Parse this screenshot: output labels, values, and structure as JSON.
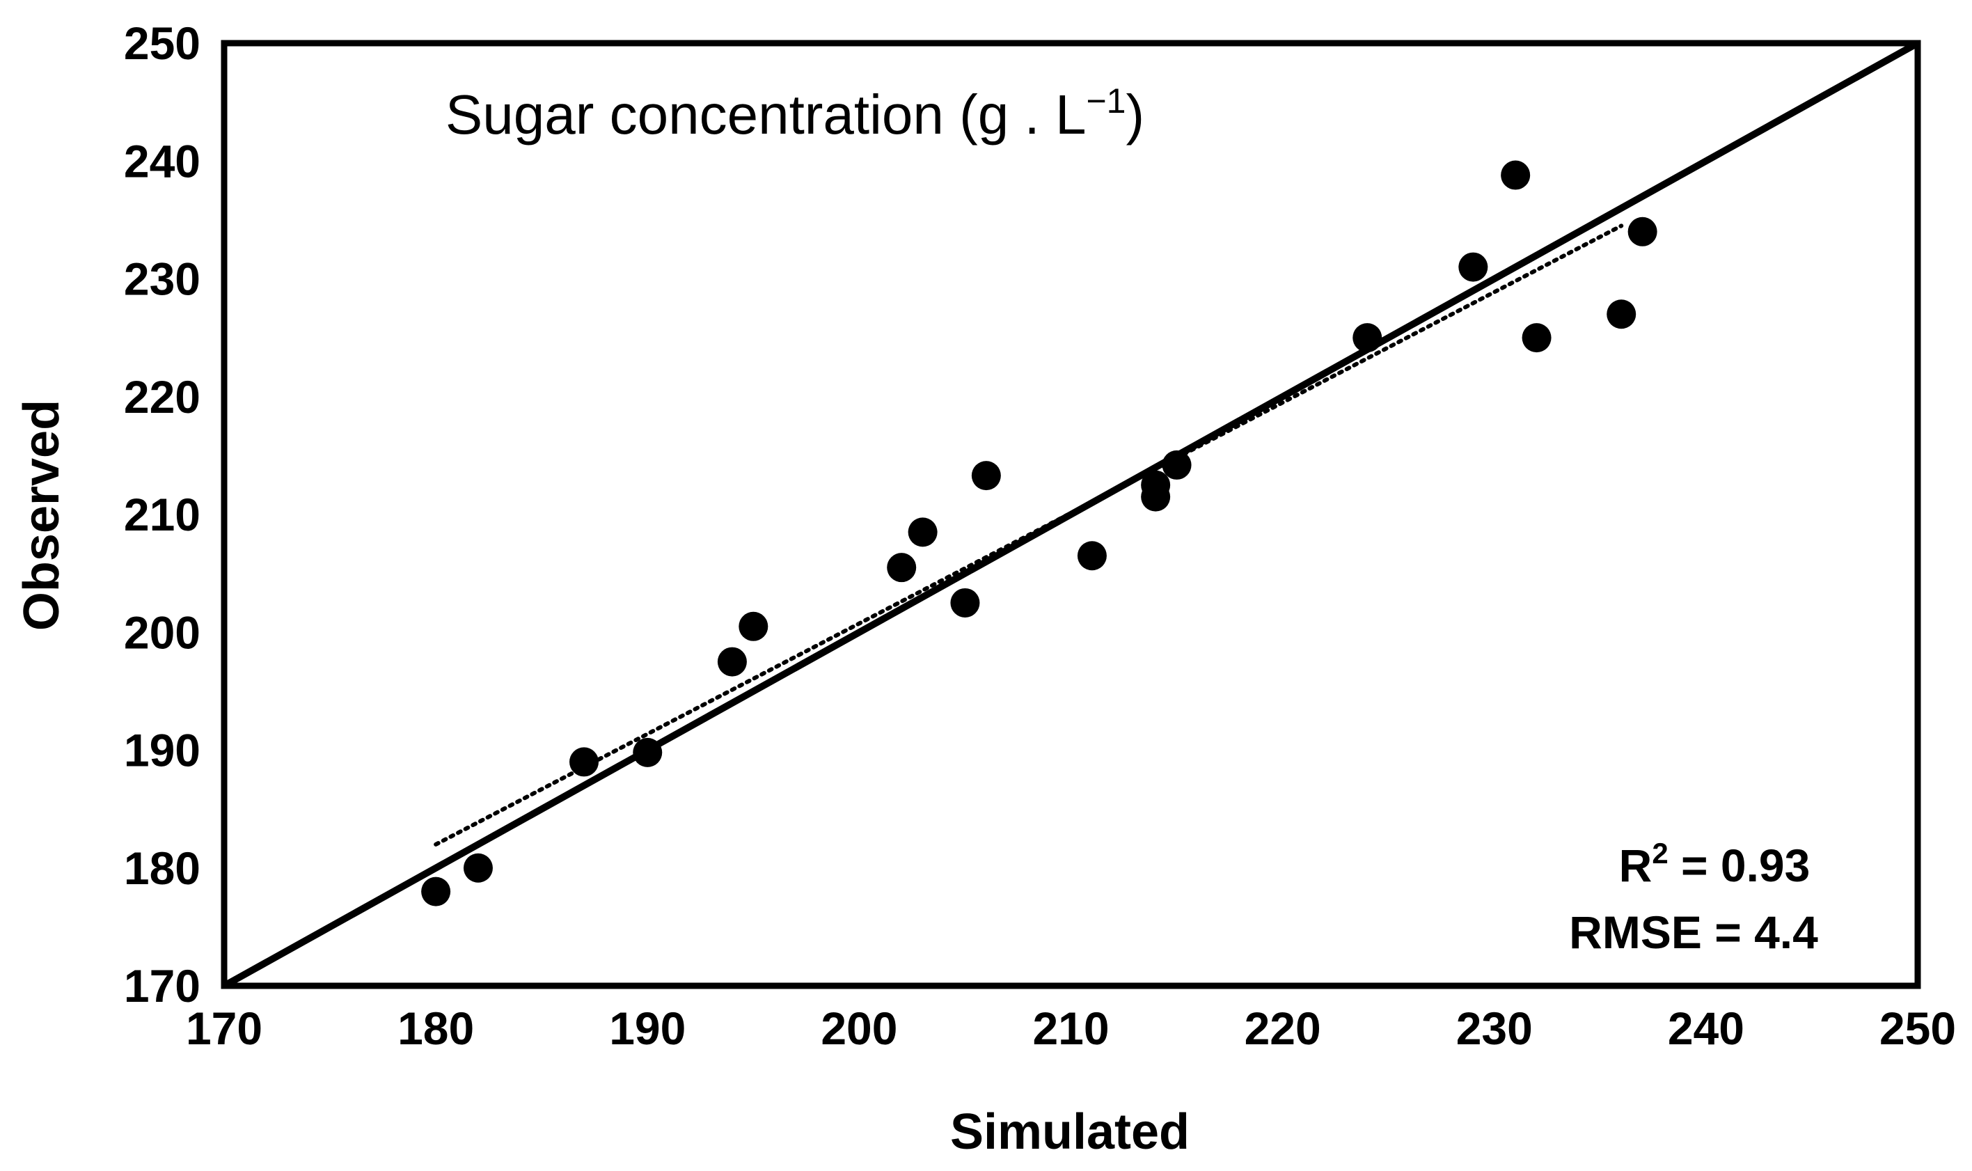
{
  "chart_data": {
    "type": "scatter",
    "title": "Sugar concentration (g . L",
    "title_superscript": "−1",
    "title_close": ")",
    "xlabel": "Simulated",
    "ylabel": "Observed",
    "xlim": [
      170,
      250
    ],
    "ylim": [
      170,
      250
    ],
    "xticks": [
      "170",
      "180",
      "190",
      "200",
      "210",
      "220",
      "230",
      "240",
      "250"
    ],
    "yticks": [
      "170",
      "180",
      "190",
      "200",
      "210",
      "220",
      "230",
      "240",
      "250"
    ],
    "grid": false,
    "series": [
      {
        "name": "Sugar concentration",
        "marker": "circle",
        "color": "#000000",
        "points": [
          {
            "x": 180,
            "y": 178
          },
          {
            "x": 182,
            "y": 180
          },
          {
            "x": 187,
            "y": 189
          },
          {
            "x": 190,
            "y": 189.8
          },
          {
            "x": 194,
            "y": 197.5
          },
          {
            "x": 195,
            "y": 200.5
          },
          {
            "x": 202,
            "y": 205.5
          },
          {
            "x": 203,
            "y": 208.5
          },
          {
            "x": 205,
            "y": 202.5
          },
          {
            "x": 206,
            "y": 213.3
          },
          {
            "x": 211,
            "y": 206.5
          },
          {
            "x": 214,
            "y": 211.5
          },
          {
            "x": 214,
            "y": 212.5
          },
          {
            "x": 215,
            "y": 214.2
          },
          {
            "x": 224,
            "y": 225
          },
          {
            "x": 229,
            "y": 231
          },
          {
            "x": 231,
            "y": 238.8
          },
          {
            "x": 232,
            "y": 225
          },
          {
            "x": 236,
            "y": 227
          },
          {
            "x": 237,
            "y": 234
          }
        ]
      }
    ],
    "reference_line": {
      "name": "1:1 line",
      "from": [
        170,
        170
      ],
      "to": [
        250,
        250
      ],
      "style": "solid"
    },
    "trend_line": {
      "name": "regression line",
      "from": [
        180,
        182
      ],
      "to": [
        236,
        234.5
      ],
      "style": "dotted"
    },
    "annotations": {
      "r2_prefix": "R",
      "r2_sup": "2",
      "r2_value": " = 0.93",
      "rmse": "RMSE = 4.4"
    }
  }
}
